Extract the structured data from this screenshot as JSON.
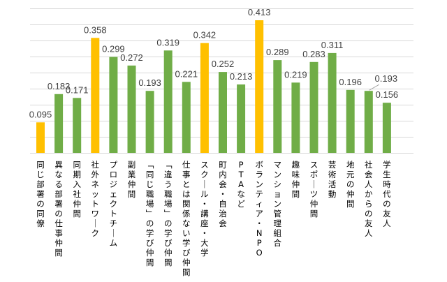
{
  "chart_data": {
    "type": "bar",
    "title": "",
    "xlabel": "",
    "ylabel": "",
    "ylim": [
      0,
      0.45
    ],
    "grid": true,
    "grid_step": 0.05,
    "y_tick_labels_visible": false,
    "legend": "none",
    "colors": {
      "highlight": "#FFC000",
      "normal": "#70AD47",
      "label": "#404040"
    },
    "categories": [
      "同じ部署の同僚",
      "異なる部署の仕事仲間",
      "同期入社仲間",
      "社外ネットワーク",
      "プロジェクトチーム",
      "副業仲間",
      "「同じ職場」の学び仲間",
      "「違う職場」の学び仲間",
      "仕事とは関係ない学び仲間",
      "スクール・講座・大学",
      "町内会・自治会",
      "PTAなど",
      "ボランティア・NPO",
      "マンション管理組合",
      "趣味仲間",
      "スポーツ仲間",
      "芸術活動",
      "地元の仲間",
      "社会人からの友人",
      "学生時代の友人"
    ],
    "values": [
      0.095,
      0.183,
      0.171,
      0.358,
      0.299,
      0.272,
      0.193,
      0.319,
      0.221,
      0.342,
      0.252,
      0.213,
      0.413,
      0.289,
      0.219,
      0.283,
      0.311,
      0.196,
      0.193,
      0.156
    ],
    "data_labels": [
      "0.095",
      "0.183",
      "0.171",
      "0.358",
      "0.299",
      "0.272",
      "0.193",
      "0.319",
      "0.221",
      "0.342",
      "0.252",
      "0.213",
      "0.413",
      "0.289",
      "0.219",
      "0.283",
      "0.311",
      "0.196",
      "0.193",
      "0.156"
    ],
    "highlighted": [
      true,
      false,
      false,
      true,
      false,
      false,
      false,
      false,
      false,
      true,
      false,
      false,
      true,
      false,
      false,
      false,
      false,
      false,
      false,
      false
    ],
    "leader_line_on": [
      18
    ]
  }
}
